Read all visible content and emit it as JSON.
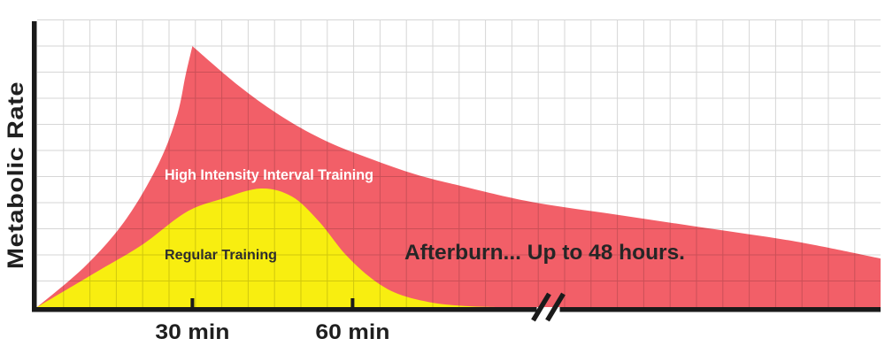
{
  "chart_data": {
    "type": "area",
    "title": "",
    "ylabel": "Metabolic Rate",
    "xlabel": "",
    "y_axis": {
      "label": "Metabolic Rate",
      "scale": "relative metabolic rate 0-100, no numeric ticks shown"
    },
    "x_axis": {
      "unit": "time (minutes; axis break after ~90 min, compressed out to 48 hours)",
      "ticks": [
        {
          "label": "30 min",
          "pos": 18.4
        },
        {
          "label": "60 min",
          "pos": 37.4
        }
      ],
      "break_pos": 60.6
    },
    "grid": "on, ~5 min squares",
    "legend_position": "labels drawn inside areas",
    "colors": {
      "axis": "#1A1A1A",
      "grid": "rgba(0,0,0,0.16)",
      "text": "#1F1F1F",
      "background": "#FFFFFF"
    },
    "series": [
      {
        "name": "High Intensity Interval Training",
        "color": "#F25F68",
        "label_color": "#FFFFFF",
        "points": {
          "rise": [
            [
              0,
              0
            ],
            [
              5.8,
              14.6
            ],
            [
              10.6,
              31
            ],
            [
              14.5,
              50.8
            ],
            [
              16.6,
              67.2
            ],
            [
              17.6,
              81.1
            ],
            [
              18.4,
              91.3
            ]
          ],
          "decay": [
            [
              18.4,
              91.3
            ],
            [
              23.9,
              77.4
            ],
            [
              29.2,
              66.3
            ],
            [
              34.4,
              57.9
            ],
            [
              39.7,
              51.7
            ],
            [
              44.9,
              46.4
            ],
            [
              50.2,
              42.4
            ],
            [
              58.6,
              36.8
            ],
            [
              69,
              32.2
            ],
            [
              79.5,
              27.6
            ],
            [
              90,
              22.9
            ],
            [
              100,
              17
            ]
          ]
        }
      },
      {
        "name": "Regular Training",
        "color": "#F8EE10",
        "label_color": "#2D2D2D",
        "points": [
          [
            0,
            0
          ],
          [
            7.1,
            12.4
          ],
          [
            12.4,
            21.7
          ],
          [
            17.6,
            33.1
          ],
          [
            21.8,
            37.8
          ],
          [
            26.5,
            41.5
          ],
          [
            30.2,
            38.7
          ],
          [
            33.4,
            30
          ],
          [
            36.5,
            18.6
          ],
          [
            39.7,
            9.9
          ],
          [
            42.8,
            4.6
          ],
          [
            47,
            1.5
          ],
          [
            51.2,
            0.3
          ],
          [
            54.4,
            0
          ]
        ]
      }
    ],
    "annotations": [
      {
        "text": "Afterburn... Up to 48 hours.",
        "color": "#262626"
      }
    ]
  }
}
